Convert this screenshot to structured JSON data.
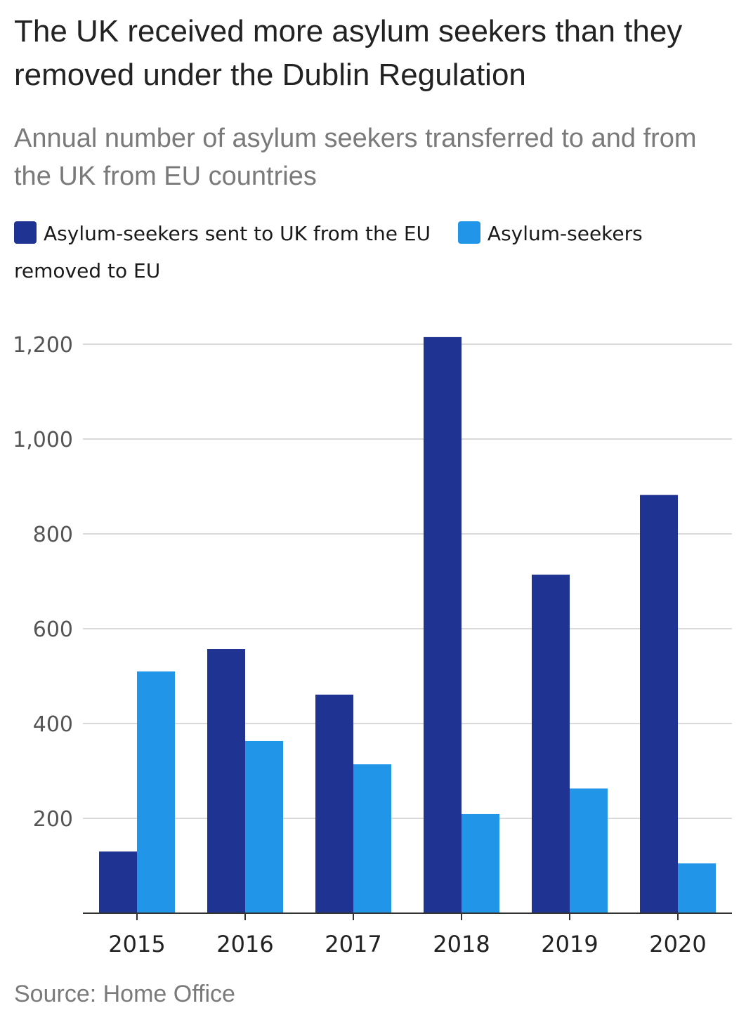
{
  "chart_data": {
    "type": "bar",
    "title": "The UK received more asylum seekers than they removed under the Dublin Regulation",
    "subtitle": "Annual number of asylum seekers transferred to and from the UK from EU countries",
    "categories": [
      "2015",
      "2016",
      "2017",
      "2018",
      "2019",
      "2020"
    ],
    "series": [
      {
        "name": "Asylum-seekers sent to UK from the EU",
        "color": "#1f3393",
        "values": [
          130,
          557,
          461,
          1215,
          714,
          882
        ]
      },
      {
        "name": "Asylum-seekers removed to EU",
        "color": "#2196e8",
        "values": [
          510,
          363,
          314,
          209,
          263,
          105
        ]
      }
    ],
    "ylim": [
      0,
      1200
    ],
    "yticks": [
      {
        "value": 200,
        "label": "200"
      },
      {
        "value": 400,
        "label": "400"
      },
      {
        "value": 600,
        "label": "600"
      },
      {
        "value": 800,
        "label": "800"
      },
      {
        "value": 1000,
        "label": "1,000"
      },
      {
        "value": 1200,
        "label": "1,200"
      }
    ],
    "grid": true,
    "legend": "top",
    "source": "Source: Home Office"
  }
}
